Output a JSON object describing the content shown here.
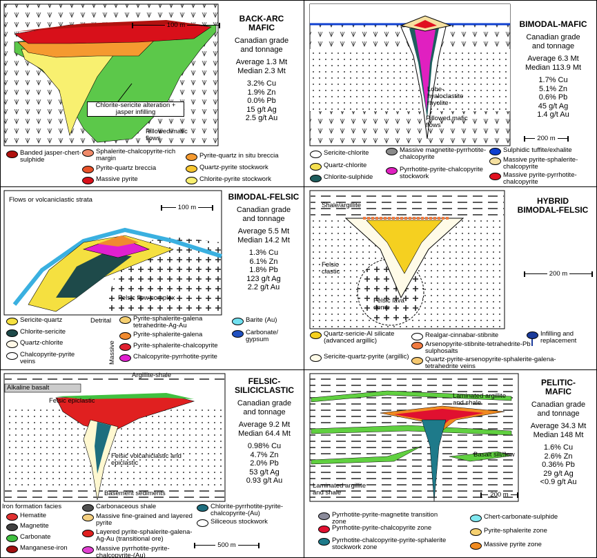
{
  "panels": [
    {
      "title": [
        "BACK-ARC",
        "MAFIC"
      ],
      "grade": [
        "Canadian grade",
        "and tonnage"
      ],
      "stats": [
        "Average 1.3 Mt",
        "Median 2.3 Mt",
        "3.2% Cu",
        "1.9% Zn",
        "0.0% Pb",
        "15 g/t Ag",
        "2.5 g/t Au"
      ],
      "scale": "100 m",
      "labels": [
        "Chlorite-sericite alteration + jasper infilling",
        "Pillowed mafic flows"
      ],
      "legend": [
        {
          "label": "Banded jasper-chert-sulphide",
          "color": "#b0120f"
        },
        {
          "label": "Sphalerite-chalcopyrite-rich margin",
          "color": "#f08a6a"
        },
        {
          "label": "Pyrite-quartz breccia",
          "color": "#e8522a"
        },
        {
          "label": "Massive pyrite",
          "color": "#d8101a"
        },
        {
          "label": "Pyrite-quartz in situ breccia",
          "color": "#f59a30"
        },
        {
          "label": "Quartz-pyrite stockwork",
          "color": "#f7c630"
        },
        {
          "label": "Chlorite-pyrite stockwork",
          "color": "#f8f070"
        }
      ]
    },
    {
      "title": [
        "BIMODAL-MAFIC"
      ],
      "grade": [
        "Canadian grade",
        "and tonnage"
      ],
      "stats": [
        "Average 6.3 Mt",
        "Median 113.9 Mt",
        "1.7% Cu",
        "5.1% Zn",
        "0.6% Pb",
        "45 g/t Ag",
        "1.4 g/t Au"
      ],
      "scale": "200 m",
      "labels": [
        "Lobe-hyaloclastite rhyolite",
        "Pillowed mafic flows"
      ],
      "legend": [
        {
          "label": "Sericite-chlorite",
          "color": "#ffffff"
        },
        {
          "label": "Quartz-chlorite",
          "color": "#f5e050"
        },
        {
          "label": "Chlorite-sulphide",
          "color": "#1e5e5e"
        },
        {
          "label": "Massive magnetite-pyrrhotite-chalcopyrite",
          "color": "#8a8a8a"
        },
        {
          "label": "Pyrrhotite-pyrite-chalcopyrite stockwork",
          "color": "#e020c0"
        },
        {
          "label": "Sulphidic tuffite/exhalite",
          "color": "#1040d0"
        },
        {
          "label": "Massive pyrite-sphalerite-chalcopyrite",
          "color": "#f5e0a0"
        },
        {
          "label": "Massive pyrite-pyrrhotite-chalcopyrite",
          "color": "#e01020"
        }
      ]
    },
    {
      "title": [
        "BIMODAL-FELSIC"
      ],
      "grade": [
        "Canadian grade",
        "and tonnage"
      ],
      "stats": [
        "Average 5.5 Mt",
        "Median 14.2 Mt",
        "1.3% Cu",
        "6.1% Zn",
        "1.8% Pb",
        "123 g/t Ag",
        "2.2 g/t Au"
      ],
      "scale": "100 m",
      "labels": [
        "Flows or volcaniclastic strata",
        "Felsic flow complex",
        "Detrital",
        "Massive"
      ],
      "legend": [
        {
          "label": "Sericite-quartz",
          "color": "#f5e040"
        },
        {
          "label": "Chlorite-sericite",
          "color": "#1e4a4a"
        },
        {
          "label": "Quartz-chlorite",
          "color": "#fff8e8"
        },
        {
          "label": "Chalcopyrite-pyrite veins",
          "color": "#ffffff"
        },
        {
          "label": "Pyrite-sphalerite-galena tetrahedrite-Ag-Au",
          "color": "#f5cf70"
        },
        {
          "label": "Pyrite-sphalerite-galena",
          "color": "#f08a30"
        },
        {
          "label": "Pyrite-sphalerite-chalcopyrite",
          "color": "#e02030"
        },
        {
          "label": "Chalcopyrite-pyrrhotite-pyrite",
          "color": "#e020d0"
        },
        {
          "label": "Barite (Au)",
          "color": "#70e0f0"
        },
        {
          "label": "Carbonate/ gypsum",
          "color": "#2050c0"
        }
      ]
    },
    {
      "title": [
        "HYBRID",
        "BIMODAL-FELSIC"
      ],
      "grade": [],
      "stats": [],
      "scale": "200 m",
      "labels": [
        "Shale/argillite",
        "Felsic clastic",
        "Felsic lava dome"
      ],
      "legend": [
        {
          "label": "Quartz-sericie-Al silicate (advanced argillic)",
          "color": "#f5d020"
        },
        {
          "label": "Sericite-quartz-pyrite (argillic)",
          "color": "#fffbe8"
        },
        {
          "label": "Realgar-cinnabar-stibnite",
          "color": "#ffffff"
        },
        {
          "label": "Arsenopyrite-stibnite-tetrahedrite-Pb sulphosalts",
          "color": "#f07a40"
        },
        {
          "label": "Quartz-pyrite-arsenopyrite-sphalerite-galena-tetrahedrite veins",
          "color": "#f5c870"
        },
        {
          "label": "Infilling and replacement",
          "color": "#1a3a9a"
        }
      ]
    },
    {
      "title": [
        "FELSIC-",
        "SILICICLASTIC"
      ],
      "grade": [
        "Canadian grade",
        "and tonnage"
      ],
      "stats": [
        "Average 9.2 Mt",
        "Median 64.4 Mt",
        "0.98% Cu",
        "4.7% Zn",
        "2.0% Pb",
        "53 g/t Ag",
        "0.93 g/t Au"
      ],
      "scale": "500 m",
      "labels": [
        "Argillite-shale",
        "Alkaline basalt",
        "Felsic epiclastic",
        "Felsic volcaniclastic and epiclastic",
        "Basement sediments",
        "Iron formation facies"
      ],
      "legend": [
        {
          "label": "Hematite",
          "color": "#e03030"
        },
        {
          "label": "Magnetite",
          "color": "#404040"
        },
        {
          "label": "Carbonate",
          "color": "#40c040"
        },
        {
          "label": "Manganese-iron",
          "color": "#a01010"
        },
        {
          "label": "Carbonaceous shale",
          "color": "#505050"
        },
        {
          "label": "Massive fine-grained and layered pyrite",
          "color": "#f5d080"
        },
        {
          "label": "Layered pyrite-sphalerite-galena-Ag-Au (transitional ore)",
          "color": "#e02020"
        },
        {
          "label": "Massive pyrrhotite-pyrite-chalcopyrite-(Au)",
          "color": "#e040d0"
        },
        {
          "label": "Chlorite-pyrrhotite-pyrite-chalcopyrite-(Au)",
          "color": "#1e6e7e"
        },
        {
          "label": "Siliceous stockwork",
          "color": "#ffffff"
        }
      ]
    },
    {
      "title": [
        "PELITIC-",
        "MAFIC"
      ],
      "grade": [
        "Canadian grade",
        "and tonnage"
      ],
      "stats": [
        "Average 34.3 Mt",
        "Median 148 Mt",
        "1.6% Cu",
        "2.6% Zn",
        "0.36% Pb",
        "29 g/t Ag",
        "<0.9 g/t Au"
      ],
      "scale": "200 m",
      "labels": [
        "Laminated argillite and shale",
        "Basalt sill/flow",
        "Laminated argillite and shale"
      ],
      "legend": [
        {
          "label": "Pyrrhotite-pyrite-magnetite transition zone",
          "color": "#8a8a9a"
        },
        {
          "label": "Pyrrhotite-pyrite-chalcopyrite zone",
          "color": "#e01030"
        },
        {
          "label": "Pyrrhotite-chalcopyrite-pyrite-sphalerite stockwork zone",
          "color": "#1e7a8a"
        },
        {
          "label": "Chert-carbonate-sulphide",
          "color": "#80e8f0"
        },
        {
          "label": "Pyrite-sphalerite zone",
          "color": "#f5d070"
        },
        {
          "label": "Massive pyrite zone",
          "color": "#f08a20"
        }
      ]
    }
  ]
}
